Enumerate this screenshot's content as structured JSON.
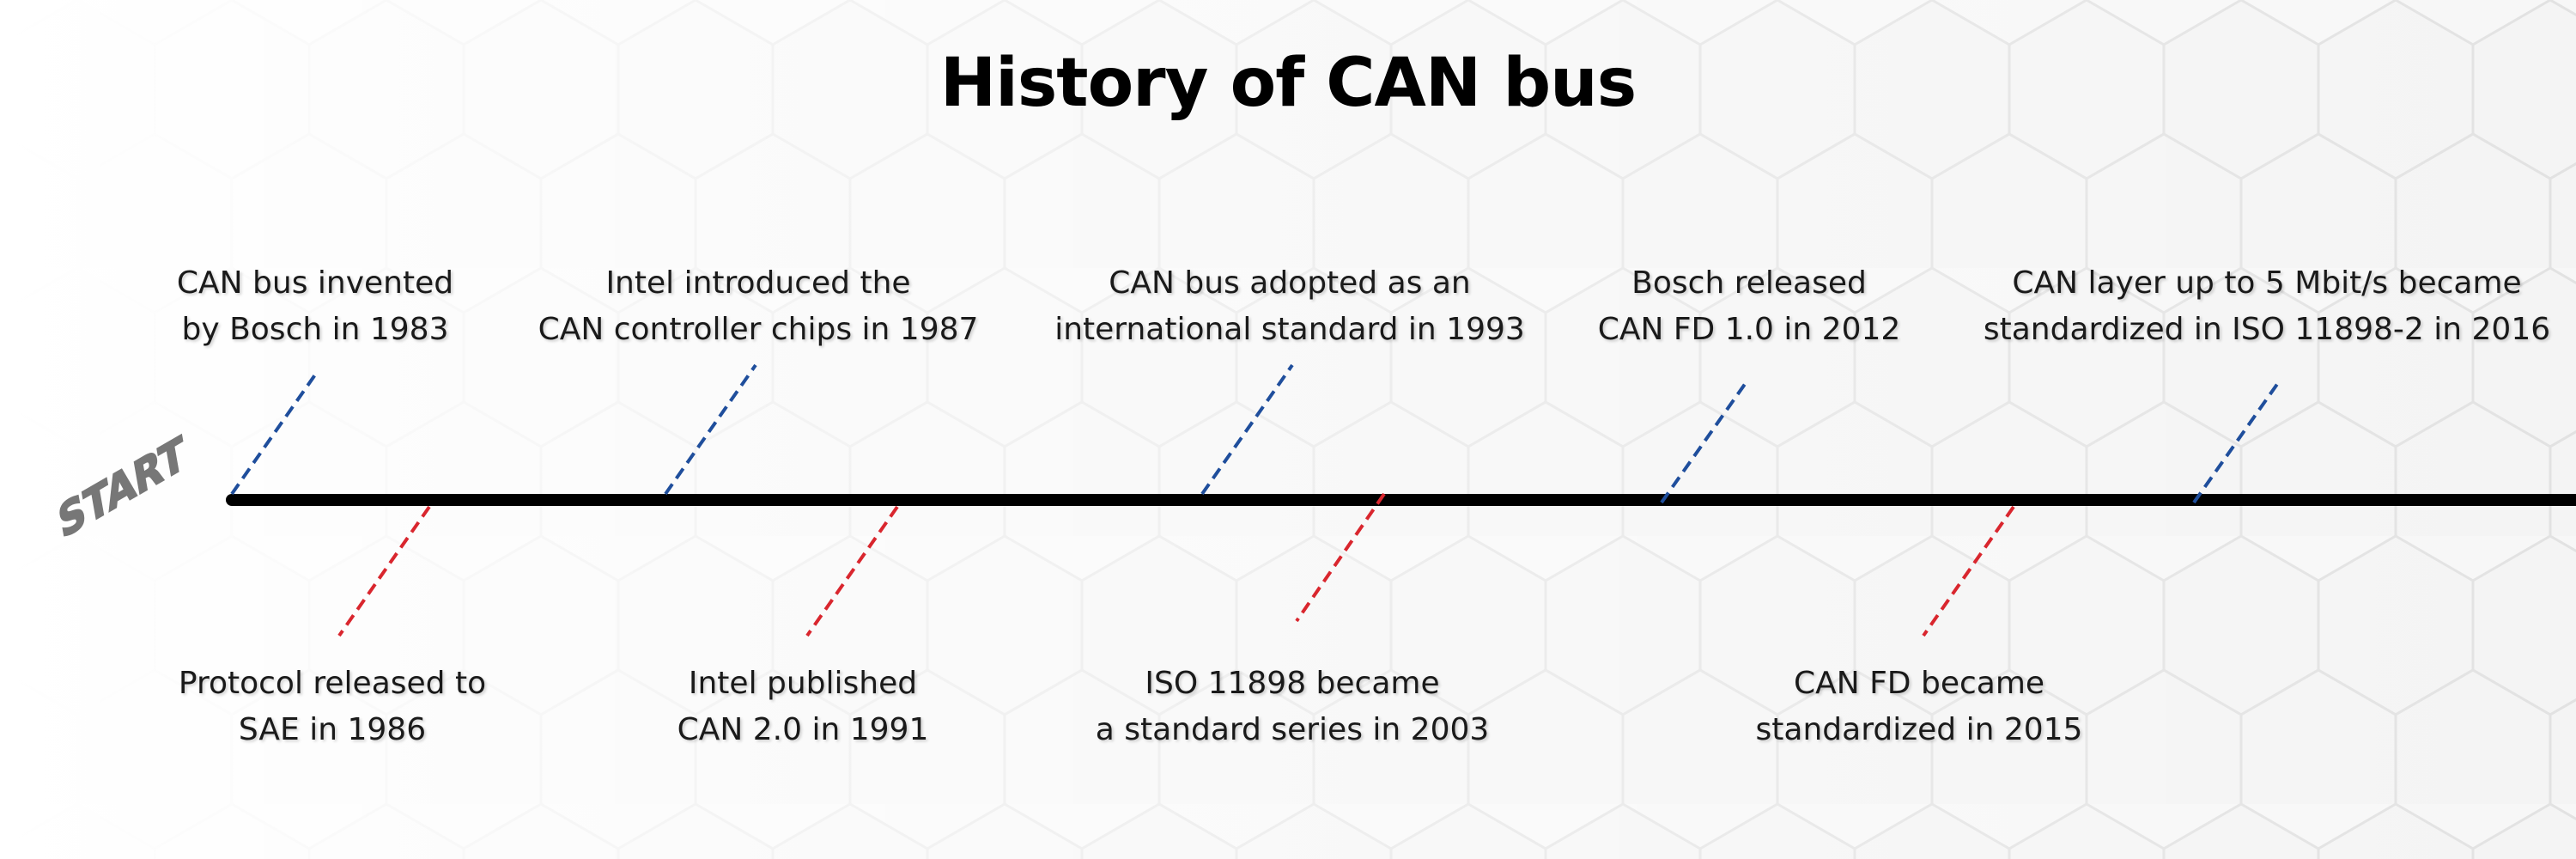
{
  "title": "History of CAN bus",
  "start_sign": "START",
  "colors": {
    "line": "#000000",
    "top_connector": "#1f4e9c",
    "bottom_connector": "#d9262e",
    "start_sign": "#777777"
  },
  "events_top": [
    {
      "line1": "CAN bus invented",
      "line2": "by Bosch in 1983"
    },
    {
      "line1": "Intel introduced the",
      "line2": "CAN controller chips in 1987"
    },
    {
      "line1": "CAN bus adopted as an",
      "line2": "international standard in 1993"
    },
    {
      "line1": "Bosch released",
      "line2": "CAN FD 1.0 in 2012"
    },
    {
      "line1": "CAN layer up to 5 Mbit/s became",
      "line2": "standardized in ISO 11898-2 in 2016"
    }
  ],
  "events_bottom": [
    {
      "line1": "Protocol released to",
      "line2": "SAE in 1986"
    },
    {
      "line1": "Intel published",
      "line2": "CAN 2.0 in 1991"
    },
    {
      "line1": "ISO 11898 became",
      "line2": "a standard series in 2003"
    },
    {
      "line1": "CAN FD became",
      "line2": "standardized in 2015"
    }
  ]
}
